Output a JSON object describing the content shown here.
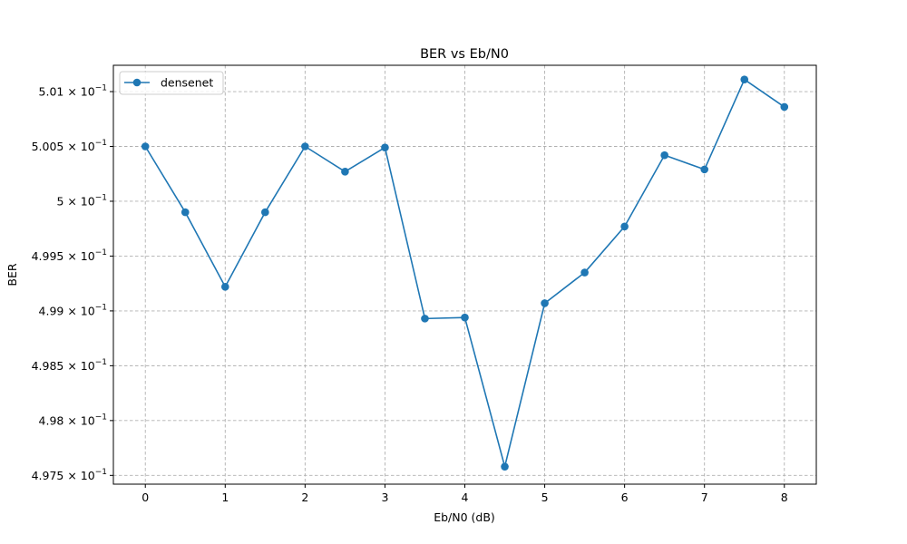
{
  "chart_data": {
    "type": "line",
    "title": "BER vs Eb/N0",
    "xlabel": "Eb/N0 (dB)",
    "ylabel": "BER",
    "xlim": [
      -0.4,
      8.4
    ],
    "ylim": [
      0.49742,
      0.50124
    ],
    "xticks": [
      0,
      1,
      2,
      3,
      4,
      5,
      6,
      7,
      8
    ],
    "xtick_labels": [
      "0",
      "1",
      "2",
      "3",
      "4",
      "5",
      "6",
      "7",
      "8"
    ],
    "yticks": [
      0.4975,
      0.498,
      0.4985,
      0.499,
      0.4995,
      0.5,
      0.5005,
      0.501
    ],
    "ytick_labels": [
      {
        "mantissa": "4.975",
        "base": "10",
        "exp": "−1"
      },
      {
        "mantissa": "4.98",
        "base": "10",
        "exp": "−1"
      },
      {
        "mantissa": "4.985",
        "base": "10",
        "exp": "−1"
      },
      {
        "mantissa": "4.99",
        "base": "10",
        "exp": "−1"
      },
      {
        "mantissa": "4.995",
        "base": "10",
        "exp": "−1"
      },
      {
        "mantissa": "5",
        "base": "10",
        "exp": "−1"
      },
      {
        "mantissa": "5.005",
        "base": "10",
        "exp": "−1"
      },
      {
        "mantissa": "5.01",
        "base": "10",
        "exp": "−1"
      }
    ],
    "grid": true,
    "legend_position": "top-left",
    "series": [
      {
        "name": "densenet",
        "color": "#1f77b4",
        "marker": "circle",
        "x": [
          0,
          0.5,
          1,
          1.5,
          2,
          2.5,
          3,
          3.5,
          4,
          4.5,
          5,
          5.5,
          6,
          6.5,
          7,
          7.5,
          8
        ],
        "y": [
          0.5005,
          0.4999,
          0.49922,
          0.4999,
          0.5005,
          0.50027,
          0.50049,
          0.49893,
          0.49894,
          0.49758,
          0.49907,
          0.49935,
          0.49977,
          0.50042,
          0.50029,
          0.50111,
          0.50086
        ]
      }
    ]
  }
}
